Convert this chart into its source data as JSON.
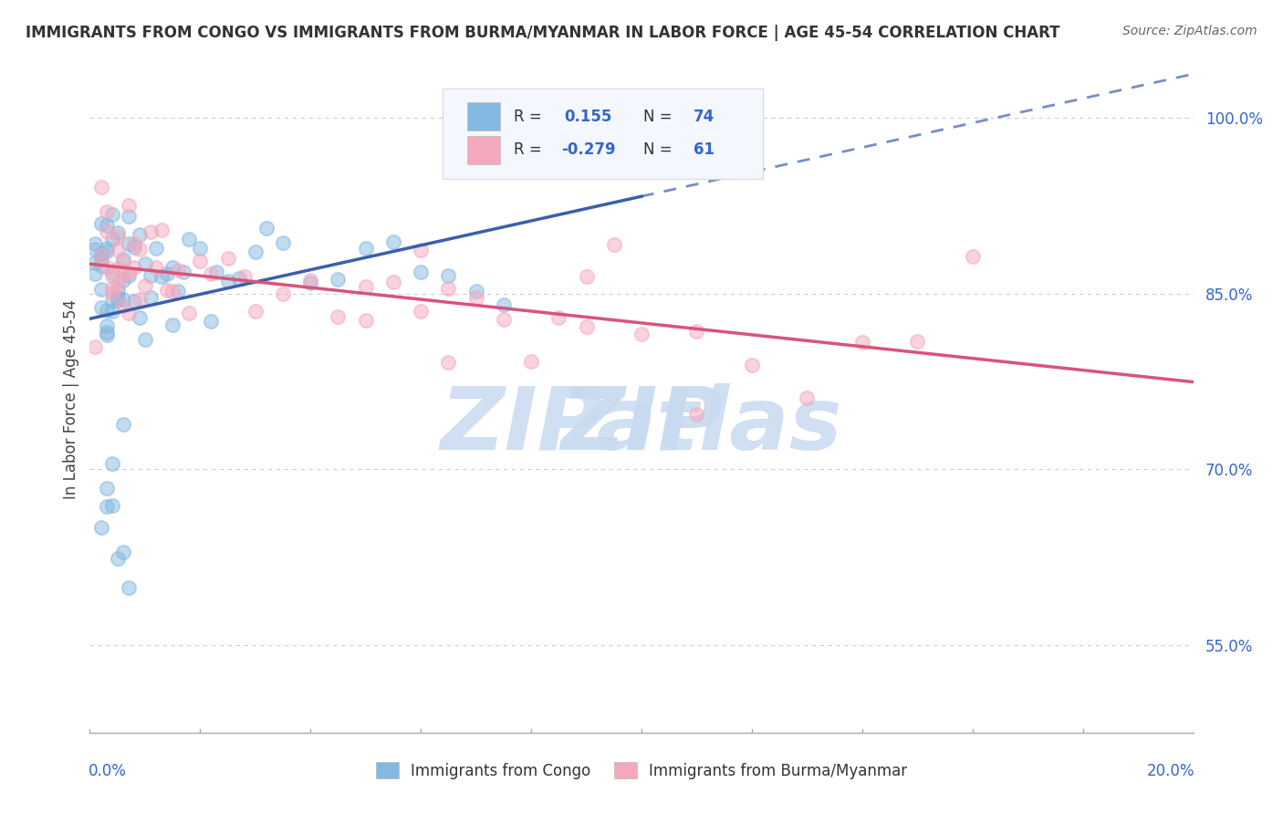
{
  "title": "IMMIGRANTS FROM CONGO VS IMMIGRANTS FROM BURMA/MYANMAR IN LABOR FORCE | AGE 45-54 CORRELATION CHART",
  "source": "Source: ZipAtlas.com",
  "ylabel": "In Labor Force | Age 45-54",
  "ytick_vals": [
    0.55,
    0.7,
    0.85,
    1.0
  ],
  "ytick_labels": [
    "55.0%",
    "70.0%",
    "85.0%",
    "100.0%"
  ],
  "xmin": 0.0,
  "xmax": 0.2,
  "ymin": 0.475,
  "ymax": 1.045,
  "congo_R": 0.155,
  "congo_N": 74,
  "burma_R": -0.279,
  "burma_N": 61,
  "congo_color": "#85b8e0",
  "burma_color": "#f5a8bc",
  "congo_line_color": "#3a5fad",
  "burma_line_color": "#d9547a",
  "background_color": "#ffffff",
  "watermark_color": "#c8daf0",
  "tick_label_color": "#3366cc",
  "title_color": "#333333",
  "source_color": "#666666",
  "legend_text_color": "#333333",
  "legend_r_color": "#3366cc",
  "legend_bg": "#f5f7ff",
  "legend_edge": "#dddddd",
  "congo_x": [
    0.001,
    0.001,
    0.001,
    0.001,
    0.002,
    0.002,
    0.002,
    0.002,
    0.002,
    0.002,
    0.003,
    0.003,
    0.003,
    0.003,
    0.003,
    0.003,
    0.003,
    0.004,
    0.004,
    0.004,
    0.004,
    0.004,
    0.005,
    0.005,
    0.005,
    0.005,
    0.006,
    0.006,
    0.006,
    0.007,
    0.007,
    0.007,
    0.008,
    0.008,
    0.009,
    0.009,
    0.01,
    0.01,
    0.011,
    0.011,
    0.012,
    0.013,
    0.014,
    0.015,
    0.015,
    0.016,
    0.017,
    0.018,
    0.02,
    0.022,
    0.023,
    0.025,
    0.027,
    0.03,
    0.032,
    0.035,
    0.04,
    0.045,
    0.05,
    0.055,
    0.06,
    0.065,
    0.07,
    0.075,
    0.002,
    0.003,
    0.003,
    0.004,
    0.004,
    0.005,
    0.006,
    0.006,
    0.007,
    0.1
  ],
  "congo_y": [
    0.88,
    0.87,
    0.86,
    0.85,
    0.89,
    0.88,
    0.87,
    0.86,
    0.85,
    0.84,
    0.92,
    0.9,
    0.88,
    0.87,
    0.86,
    0.85,
    0.84,
    0.91,
    0.89,
    0.87,
    0.86,
    0.85,
    0.9,
    0.88,
    0.86,
    0.85,
    0.89,
    0.87,
    0.86,
    0.9,
    0.88,
    0.87,
    0.89,
    0.87,
    0.88,
    0.86,
    0.87,
    0.86,
    0.88,
    0.86,
    0.87,
    0.86,
    0.87,
    0.88,
    0.86,
    0.87,
    0.88,
    0.87,
    0.88,
    0.87,
    0.86,
    0.87,
    0.88,
    0.87,
    0.88,
    0.87,
    0.88,
    0.87,
    0.88,
    0.87,
    0.88,
    0.87,
    0.88,
    0.87,
    0.63,
    0.65,
    0.67,
    0.68,
    0.66,
    0.64,
    0.62,
    0.7,
    0.6,
    0.97
  ],
  "burma_x": [
    0.001,
    0.002,
    0.002,
    0.003,
    0.003,
    0.004,
    0.004,
    0.005,
    0.005,
    0.006,
    0.006,
    0.007,
    0.008,
    0.009,
    0.01,
    0.011,
    0.012,
    0.013,
    0.014,
    0.015,
    0.016,
    0.018,
    0.02,
    0.022,
    0.025,
    0.028,
    0.03,
    0.035,
    0.04,
    0.045,
    0.05,
    0.055,
    0.06,
    0.065,
    0.07,
    0.075,
    0.08,
    0.085,
    0.09,
    0.095,
    0.1,
    0.11,
    0.12,
    0.13,
    0.14,
    0.15,
    0.003,
    0.005,
    0.007,
    0.009,
    0.06,
    0.09,
    0.004,
    0.006,
    0.008,
    0.05,
    0.065,
    0.005,
    0.007,
    0.16,
    0.11
  ],
  "burma_y": [
    0.87,
    0.92,
    0.88,
    0.91,
    0.87,
    0.9,
    0.86,
    0.89,
    0.85,
    0.89,
    0.86,
    0.88,
    0.87,
    0.88,
    0.87,
    0.89,
    0.87,
    0.88,
    0.87,
    0.86,
    0.88,
    0.87,
    0.87,
    0.86,
    0.88,
    0.87,
    0.87,
    0.86,
    0.87,
    0.85,
    0.86,
    0.85,
    0.84,
    0.85,
    0.84,
    0.83,
    0.84,
    0.83,
    0.82,
    0.83,
    0.82,
    0.81,
    0.79,
    0.79,
    0.78,
    0.79,
    0.9,
    0.88,
    0.89,
    0.88,
    0.82,
    0.81,
    0.89,
    0.88,
    0.87,
    0.84,
    0.83,
    0.87,
    0.86,
    0.87,
    0.77
  ]
}
